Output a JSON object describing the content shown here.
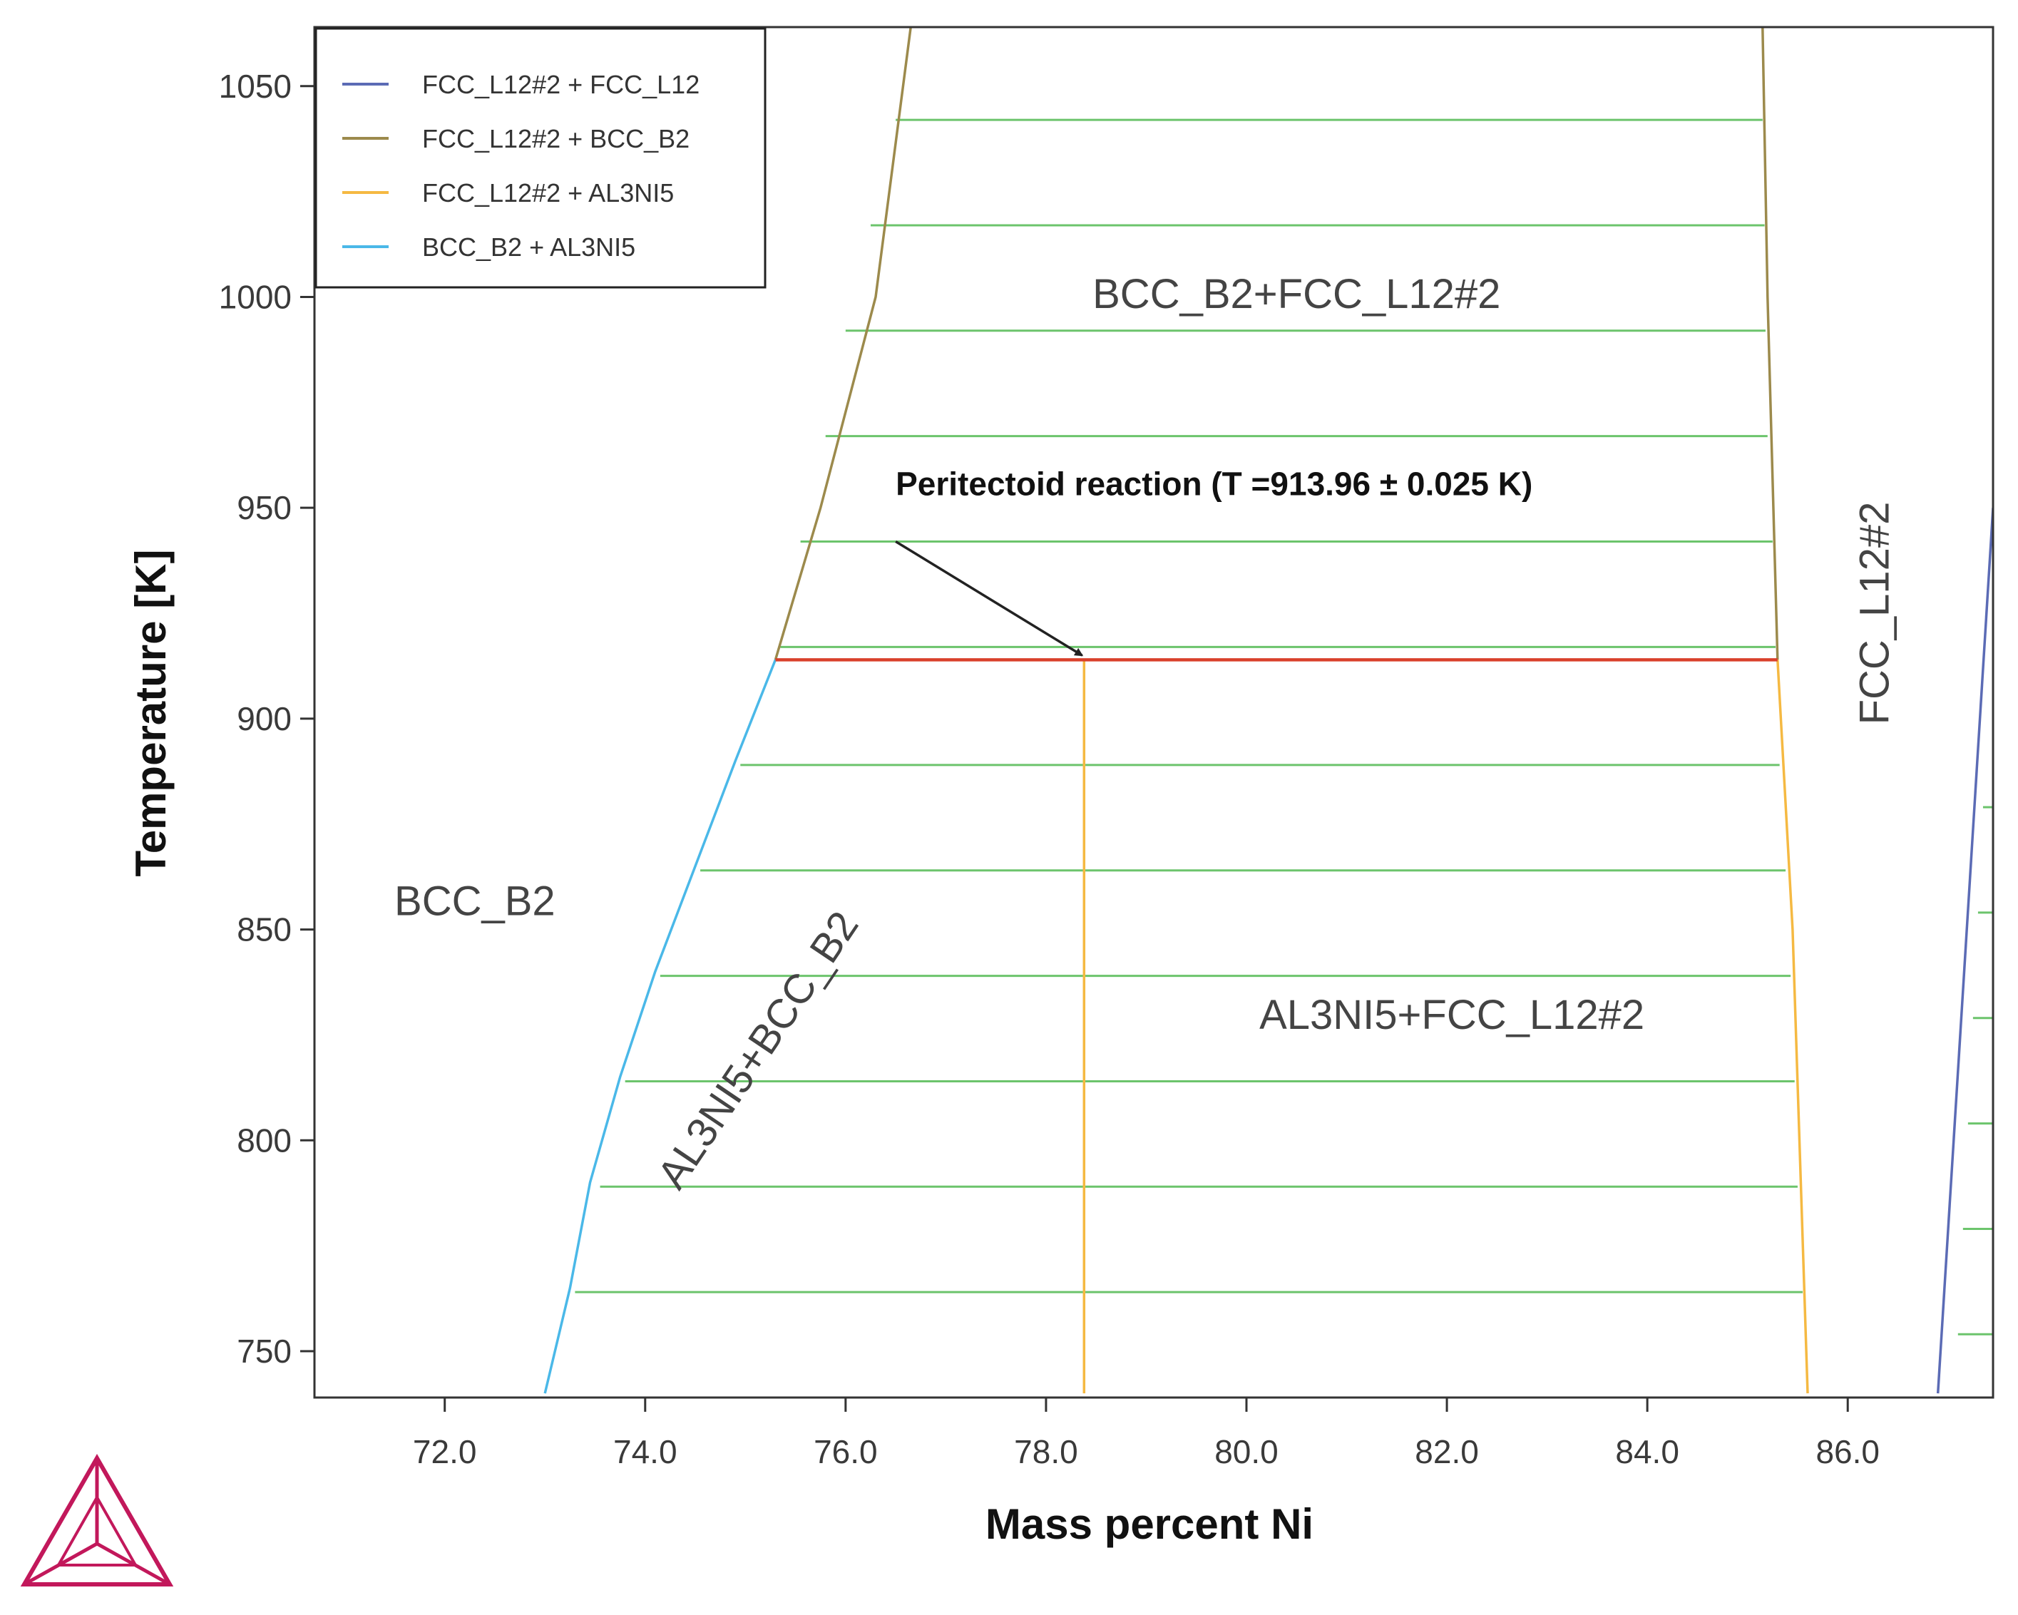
{
  "chart_data": {
    "type": "line",
    "title": "",
    "xlabel": "Mass percent Ni",
    "ylabel": "Temperature [K]",
    "xlim": [
      70.7,
      87.45
    ],
    "ylim": [
      739,
      1064
    ],
    "x_ticks": [
      72.0,
      74.0,
      76.0,
      78.0,
      80.0,
      82.0,
      84.0,
      86.0
    ],
    "x_tick_labels": [
      "72.0",
      "74.0",
      "76.0",
      "78.0",
      "80.0",
      "82.0",
      "84.0",
      "86.0"
    ],
    "y_ticks": [
      750,
      800,
      850,
      900,
      950,
      1000,
      1050
    ],
    "y_tick_labels": [
      "750",
      "800",
      "850",
      "900",
      "950",
      "1000",
      "1050"
    ],
    "grid": false,
    "legend_position": "top-left",
    "legend": [
      {
        "label": "FCC_L12#2 + FCC_L12",
        "color": "#5b6bb5"
      },
      {
        "label": "FCC_L12#2 + BCC_B2",
        "color": "#9c8a4c"
      },
      {
        "label": "FCC_L12#2 + AL3NI5",
        "color": "#f5b942"
      },
      {
        "label": "BCC_B2 + AL3NI5",
        "color": "#4ab8e8"
      }
    ],
    "series": [
      {
        "name": "FCC_L12#2 + FCC_L12",
        "color": "#5b6bb5",
        "lines": [
          [
            [
              86.9,
              740
            ],
            [
              87.45,
              950
            ]
          ]
        ]
      },
      {
        "name": "FCC_L12#2 + BCC_B2",
        "color": "#9c8a4c",
        "lines": [
          [
            [
              75.3,
              914
            ],
            [
              75.75,
              950
            ],
            [
              76.3,
              1000
            ],
            [
              76.65,
              1064
            ]
          ],
          [
            [
              85.3,
              914
            ],
            [
              85.2,
              1000
            ],
            [
              85.15,
              1064
            ]
          ]
        ]
      },
      {
        "name": "FCC_L12#2 + AL3NI5",
        "color": "#f5b942",
        "lines": [
          [
            [
              85.3,
              914
            ],
            [
              85.45,
              850
            ],
            [
              85.6,
              740
            ]
          ],
          [
            [
              78.38,
              914
            ],
            [
              78.38,
              740
            ]
          ]
        ]
      },
      {
        "name": "BCC_B2 + AL3NI5",
        "color": "#4ab8e8",
        "lines": [
          [
            [
              75.3,
              914
            ],
            [
              74.9,
              890
            ],
            [
              74.5,
              865
            ],
            [
              74.1,
              840
            ],
            [
              73.75,
              815
            ],
            [
              73.45,
              790
            ],
            [
              73.25,
              765
            ],
            [
              73.0,
              740
            ]
          ]
        ]
      }
    ],
    "invariant": {
      "temperature": 913.96,
      "x_range": [
        75.3,
        85.3
      ],
      "color": "#d9402b"
    },
    "tie_lines": {
      "color": "#6cc46c",
      "segments": [
        [
          76.5,
          85.15,
          1042
        ],
        [
          76.25,
          85.17,
          1017
        ],
        [
          76.0,
          85.18,
          992
        ],
        [
          75.8,
          85.2,
          967
        ],
        [
          75.55,
          85.25,
          942
        ],
        [
          75.35,
          85.28,
          917
        ],
        [
          74.95,
          85.32,
          889
        ],
        [
          74.55,
          85.38,
          864
        ],
        [
          74.15,
          85.43,
          839
        ],
        [
          73.8,
          85.47,
          814
        ],
        [
          73.55,
          85.5,
          789
        ],
        [
          73.3,
          85.55,
          764
        ]
      ],
      "right_segments": [
        [
          87.1,
          87.45,
          754
        ],
        [
          87.15,
          87.45,
          779
        ],
        [
          87.2,
          87.45,
          804
        ],
        [
          87.25,
          87.45,
          829
        ],
        [
          87.3,
          87.45,
          854
        ],
        [
          87.35,
          87.45,
          879
        ]
      ]
    },
    "region_labels": [
      {
        "text": "BCC_B2+FCC_L12#2",
        "x": 80.5,
        "y": 1000,
        "rotate": 0
      },
      {
        "text": "BCC_B2",
        "x": 72.3,
        "y": 856,
        "rotate": 0
      },
      {
        "text": "AL3NI5+FCC_L12#2",
        "x": 82.05,
        "y": 829,
        "rotate": 0
      },
      {
        "text": "AL3NI5+BCC_B2",
        "x": 75.15,
        "y": 821,
        "rotate": -56
      },
      {
        "text": "FCC_L12#2",
        "x": 86.3,
        "y": 925,
        "rotate": -90
      }
    ],
    "annotation": {
      "text": "Peritectoid reaction (T =913.96 ± 0.025 K)",
      "text_x": 76.5,
      "text_y": 953,
      "arrow_from": [
        76.5,
        942
      ],
      "arrow_to": [
        78.36,
        915
      ]
    }
  }
}
